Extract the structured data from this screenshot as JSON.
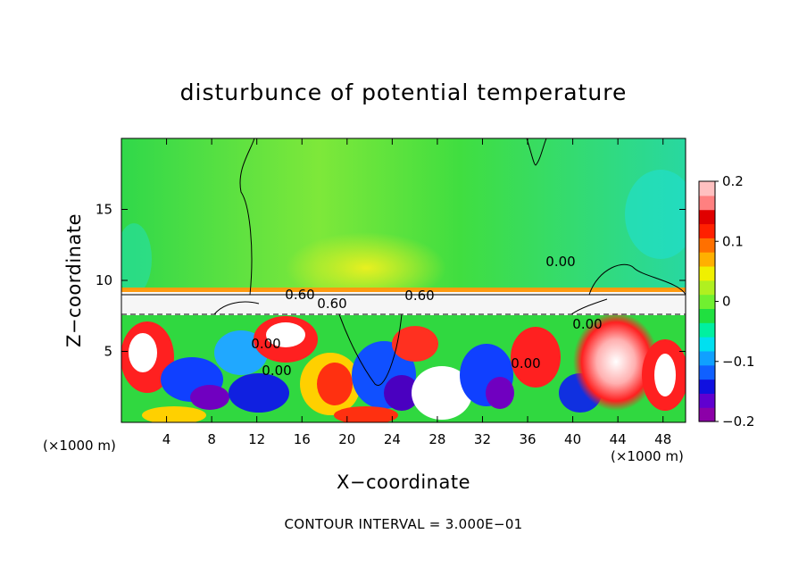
{
  "chart_data": {
    "type": "heatmap",
    "title": "disturbunce of potential temperature",
    "xlabel": "X−coordinate",
    "ylabel": "Z−coordinate",
    "x_unit_left": "(×1000 m)",
    "x_unit_right": "(×1000 m)",
    "xlim": [
      0,
      50
    ],
    "ylim": [
      0,
      20
    ],
    "x_ticks": [
      4,
      8,
      12,
      16,
      20,
      24,
      28,
      32,
      36,
      40,
      44,
      48
    ],
    "y_ticks": [
      5,
      10,
      15
    ],
    "colorbar": {
      "range": [
        -0.2,
        0.2
      ],
      "ticks": [
        0.2,
        0.1,
        0,
        -0.1,
        -0.2
      ],
      "tick_labels": [
        "0.2",
        "0.1",
        "0",
        "−0.1",
        "−0.2"
      ],
      "colors": [
        "#8c00a8",
        "#6000d0",
        "#1010e0",
        "#1060ff",
        "#10a0ff",
        "#00e0f0",
        "#00f0a0",
        "#20e040",
        "#70f030",
        "#b0f020",
        "#f0f000",
        "#ffb000",
        "#ff7000",
        "#ff2000",
        "#e00000",
        "#ff8080",
        "#ffc0c0"
      ]
    },
    "contour_labels": [
      "0.60",
      "0.60",
      "0.60",
      "0.00",
      "0.00",
      "0.00",
      "0.00",
      "0.00"
    ],
    "footer": "CONTOUR INTERVAL = 3.000E−01"
  }
}
